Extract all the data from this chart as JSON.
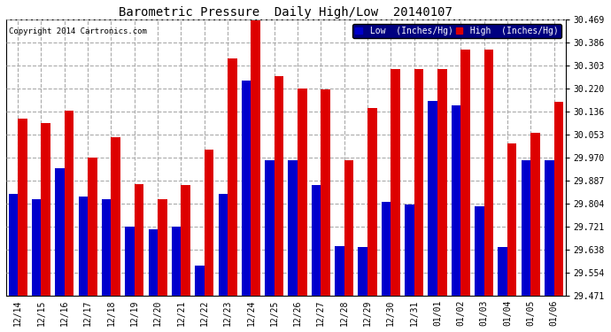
{
  "title": "Barometric Pressure  Daily High/Low  20140107",
  "copyright": "Copyright 2014 Cartronics.com",
  "ylabel_right_ticks": [
    29.471,
    29.554,
    29.638,
    29.721,
    29.804,
    29.887,
    29.97,
    30.053,
    30.136,
    30.22,
    30.303,
    30.386,
    30.469
  ],
  "dates": [
    "12/14",
    "12/15",
    "12/16",
    "12/17",
    "12/18",
    "12/19",
    "12/20",
    "12/21",
    "12/22",
    "12/23",
    "12/24",
    "12/25",
    "12/26",
    "12/27",
    "12/28",
    "12/29",
    "12/30",
    "12/31",
    "01/01",
    "01/02",
    "01/03",
    "01/04",
    "01/05",
    "01/06"
  ],
  "low": [
    29.84,
    29.82,
    29.93,
    29.83,
    29.82,
    29.72,
    29.71,
    29.72,
    29.58,
    29.84,
    30.25,
    29.96,
    29.96,
    29.87,
    29.65,
    29.645,
    29.81,
    29.8,
    30.175,
    30.16,
    29.795,
    29.645,
    29.96,
    29.96
  ],
  "high": [
    30.11,
    30.095,
    30.14,
    29.97,
    30.045,
    29.875,
    29.82,
    29.87,
    30.0,
    30.33,
    30.465,
    30.265,
    30.22,
    30.215,
    29.96,
    30.15,
    30.29,
    30.29,
    30.29,
    30.36,
    30.36,
    30.02,
    30.06,
    30.17
  ],
  "low_color": "#0000cc",
  "high_color": "#dd0000",
  "bg_color": "#ffffff",
  "plot_bg_color": "#ffffff",
  "grid_color": "#aaaaaa",
  "ylim_min": 29.471,
  "ylim_max": 30.469,
  "bar_width": 0.4
}
